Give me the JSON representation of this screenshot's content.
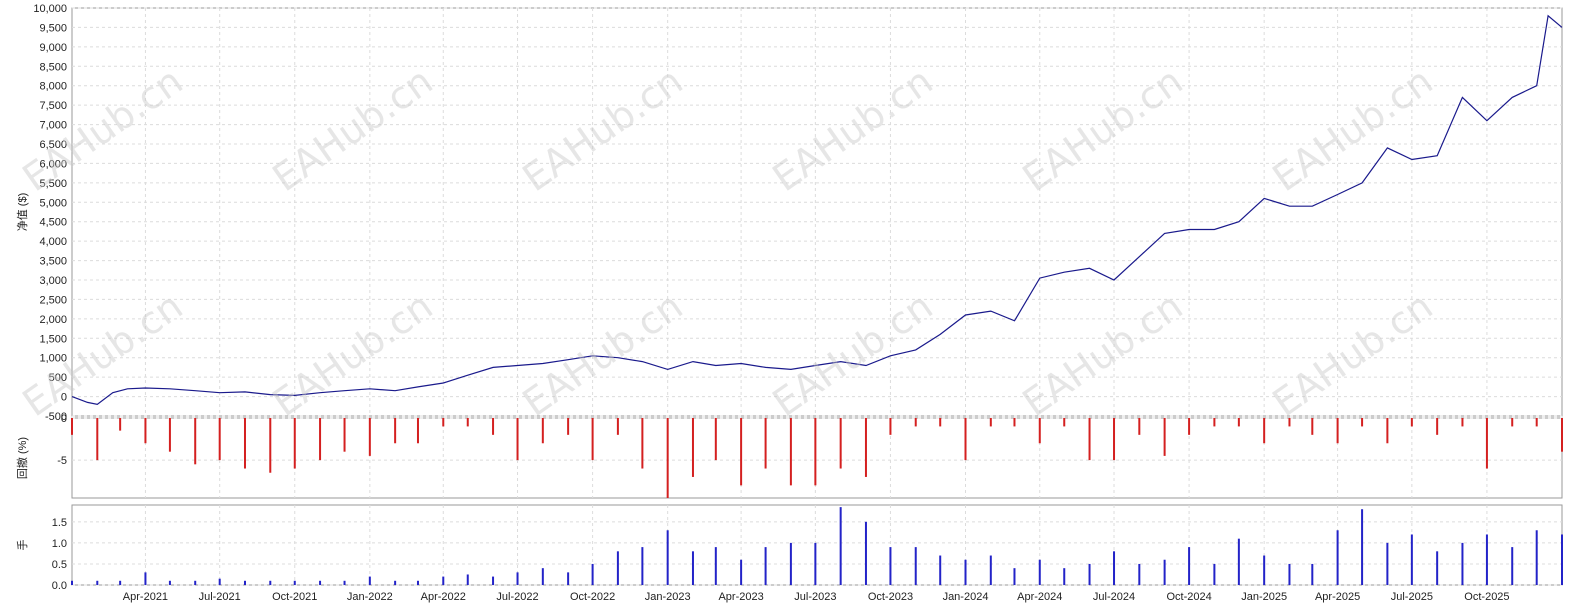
{
  "chart_data": [
    {
      "type": "line",
      "ylabel": "净值 ($)",
      "ylim": [
        -500,
        10000
      ],
      "yticks": [
        -500,
        0,
        500,
        1000,
        1500,
        2000,
        2500,
        3000,
        3500,
        4000,
        4500,
        5000,
        5500,
        6000,
        6500,
        7000,
        7500,
        8000,
        8500,
        9000,
        9500,
        10000
      ],
      "ytick_labels": [
        "-500",
        "0",
        "500",
        "1,000",
        "1,500",
        "2,000",
        "2,500",
        "3,000",
        "3,500",
        "4,000",
        "4,500",
        "5,000",
        "5,500",
        "6,000",
        "6,500",
        "7,000",
        "7,500",
        "8,000",
        "8,500",
        "9,000",
        "9,500",
        "10,000"
      ],
      "grid": true,
      "series": [
        {
          "color": "#1a1a8c",
          "x": [
            "2021-01-01",
            "2021-01-20",
            "2021-02-01",
            "2021-02-20",
            "2021-03-10",
            "2021-04-01",
            "2021-05-01",
            "2021-06-01",
            "2021-07-01",
            "2021-08-01",
            "2021-09-01",
            "2021-10-01",
            "2021-11-01",
            "2021-12-01",
            "2022-01-01",
            "2022-02-01",
            "2022-03-01",
            "2022-04-01",
            "2022-05-01",
            "2022-06-01",
            "2022-07-01",
            "2022-08-01",
            "2022-09-01",
            "2022-10-01",
            "2022-11-01",
            "2022-12-01",
            "2023-01-01",
            "2023-02-01",
            "2023-03-01",
            "2023-04-01",
            "2023-05-01",
            "2023-06-01",
            "2023-07-01",
            "2023-08-01",
            "2023-09-01",
            "2023-10-01",
            "2023-11-01",
            "2023-12-01",
            "2024-01-01",
            "2024-02-01",
            "2024-03-01",
            "2024-04-01",
            "2024-05-01",
            "2024-06-01",
            "2024-07-01",
            "2024-08-01",
            "2024-09-01",
            "2024-10-01",
            "2024-11-01",
            "2024-12-01",
            "2025-01-01",
            "2025-02-01",
            "2025-03-01",
            "2025-04-01",
            "2025-05-01",
            "2025-06-01",
            "2025-07-01",
            "2025-08-01",
            "2025-09-01",
            "2025-10-01",
            "2025-11-01",
            "2025-12-01",
            "2025-12-15",
            "2026-01-01"
          ],
          "values": [
            0,
            -150,
            -200,
            100,
            200,
            220,
            200,
            150,
            100,
            120,
            50,
            30,
            100,
            150,
            200,
            150,
            250,
            350,
            550,
            750,
            800,
            850,
            950,
            1050,
            1000,
            900,
            700,
            900,
            800,
            850,
            750,
            700,
            800,
            900,
            800,
            1050,
            1200,
            1600,
            2100,
            2200,
            1950,
            3050,
            3200,
            3300,
            3000,
            3600,
            4200,
            4300,
            4300,
            4500,
            5100,
            4900,
            4900,
            5200,
            5500,
            6400,
            6100,
            6200,
            7700,
            7100,
            7700,
            8000,
            9800,
            9500
          ]
        }
      ]
    },
    {
      "type": "bar",
      "ylabel": "回撤 (%)",
      "ylim": [
        -9.5,
        0
      ],
      "yticks": [
        -5,
        0
      ],
      "ytick_labels": [
        "-5",
        "0"
      ],
      "grid": true,
      "color": "#d42020",
      "x": [
        "2021-01-01",
        "2021-02-01",
        "2021-03-01",
        "2021-04-01",
        "2021-05-01",
        "2021-06-01",
        "2021-07-01",
        "2021-08-01",
        "2021-09-01",
        "2021-10-01",
        "2021-11-01",
        "2021-12-01",
        "2022-01-01",
        "2022-02-01",
        "2022-03-01",
        "2022-04-01",
        "2022-05-01",
        "2022-06-01",
        "2022-07-01",
        "2022-08-01",
        "2022-09-01",
        "2022-10-01",
        "2022-11-01",
        "2022-12-01",
        "2023-01-01",
        "2023-02-01",
        "2023-03-01",
        "2023-04-01",
        "2023-05-01",
        "2023-06-01",
        "2023-07-01",
        "2023-08-01",
        "2023-09-01",
        "2023-10-01",
        "2023-11-01",
        "2023-12-01",
        "2024-01-01",
        "2024-02-01",
        "2024-03-01",
        "2024-04-01",
        "2024-05-01",
        "2024-06-01",
        "2024-07-01",
        "2024-08-01",
        "2024-09-01",
        "2024-10-01",
        "2024-11-01",
        "2024-12-01",
        "2025-01-01",
        "2025-02-01",
        "2025-03-01",
        "2025-04-01",
        "2025-05-01",
        "2025-06-01",
        "2025-07-01",
        "2025-08-01",
        "2025-09-01",
        "2025-10-01",
        "2025-11-01",
        "2025-12-01",
        "2026-01-01"
      ],
      "values": [
        -2,
        -5,
        -1.5,
        -3,
        -4,
        -5.5,
        -5,
        -6,
        -6.5,
        -6,
        -5,
        -4,
        -4.5,
        -3,
        -3,
        -1,
        -1,
        -2,
        -5,
        -3,
        -2,
        -5,
        -2,
        -6,
        -9.5,
        -7,
        -5,
        -8,
        -6,
        -8,
        -8,
        -6,
        -7,
        -2,
        -1,
        -1,
        -5,
        -1,
        -1,
        -3,
        -1,
        -5,
        -5,
        -2,
        -4.5,
        -2,
        -1,
        -1,
        -3,
        -1,
        -2,
        -3,
        -1,
        -3,
        -1,
        -2,
        -1,
        -6,
        -1,
        -1,
        -4
      ]
    },
    {
      "type": "bar",
      "ylabel": "手",
      "ylim": [
        0,
        1.9
      ],
      "yticks": [
        0,
        0.5,
        1.0,
        1.5
      ],
      "ytick_labels": [
        "0.0",
        "0.5",
        "1.0",
        "1.5"
      ],
      "grid": true,
      "color": "#2323c8",
      "xticks": [
        "2021-04-01",
        "2021-07-01",
        "2021-10-01",
        "2022-01-01",
        "2022-04-01",
        "2022-07-01",
        "2022-10-01",
        "2023-01-01",
        "2023-04-01",
        "2023-07-01",
        "2023-10-01",
        "2024-01-01",
        "2024-04-01",
        "2024-07-01",
        "2024-10-01",
        "2025-01-01",
        "2025-04-01",
        "2025-07-01",
        "2025-10-01"
      ],
      "xtick_labels": [
        "Apr-2021",
        "Jul-2021",
        "Oct-2021",
        "Jan-2022",
        "Apr-2022",
        "Jul-2022",
        "Oct-2022",
        "Jan-2023",
        "Apr-2023",
        "Jul-2023",
        "Oct-2023",
        "Jan-2024",
        "Apr-2024",
        "Jul-2024",
        "Oct-2024",
        "Jan-2025",
        "Apr-2025",
        "Jul-2025",
        "Oct-2025"
      ],
      "x": [
        "2021-01-01",
        "2021-02-01",
        "2021-03-01",
        "2021-04-01",
        "2021-05-01",
        "2021-06-01",
        "2021-07-01",
        "2021-08-01",
        "2021-09-01",
        "2021-10-01",
        "2021-11-01",
        "2021-12-01",
        "2022-01-01",
        "2022-02-01",
        "2022-03-01",
        "2022-04-01",
        "2022-05-01",
        "2022-06-01",
        "2022-07-01",
        "2022-08-01",
        "2022-09-01",
        "2022-10-01",
        "2022-11-01",
        "2022-12-01",
        "2023-01-01",
        "2023-02-01",
        "2023-03-01",
        "2023-04-01",
        "2023-05-01",
        "2023-06-01",
        "2023-07-01",
        "2023-08-01",
        "2023-09-01",
        "2023-10-01",
        "2023-11-01",
        "2023-12-01",
        "2024-01-01",
        "2024-02-01",
        "2024-03-01",
        "2024-04-01",
        "2024-05-01",
        "2024-06-01",
        "2024-07-01",
        "2024-08-01",
        "2024-09-01",
        "2024-10-01",
        "2024-11-01",
        "2024-12-01",
        "2025-01-01",
        "2025-02-01",
        "2025-03-01",
        "2025-04-01",
        "2025-05-01",
        "2025-06-01",
        "2025-07-01",
        "2025-08-01",
        "2025-09-01",
        "2025-10-01",
        "2025-11-01",
        "2025-12-01",
        "2026-01-01"
      ],
      "values": [
        0.1,
        0.1,
        0.1,
        0.3,
        0.1,
        0.1,
        0.15,
        0.1,
        0.1,
        0.1,
        0.1,
        0.1,
        0.2,
        0.1,
        0.1,
        0.2,
        0.25,
        0.2,
        0.3,
        0.4,
        0.3,
        0.5,
        0.8,
        0.9,
        1.3,
        0.8,
        0.9,
        0.6,
        0.9,
        1.0,
        1.0,
        1.85,
        1.5,
        0.9,
        0.9,
        0.7,
        0.6,
        0.7,
        0.4,
        0.6,
        0.4,
        0.5,
        0.8,
        0.5,
        0.6,
        0.9,
        0.5,
        1.1,
        0.7,
        0.5,
        0.5,
        1.3,
        1.8,
        1.0,
        1.2,
        0.8,
        1.0,
        1.2,
        0.9,
        1.3,
        1.2
      ]
    }
  ],
  "watermark_text": "EAHub.cn"
}
